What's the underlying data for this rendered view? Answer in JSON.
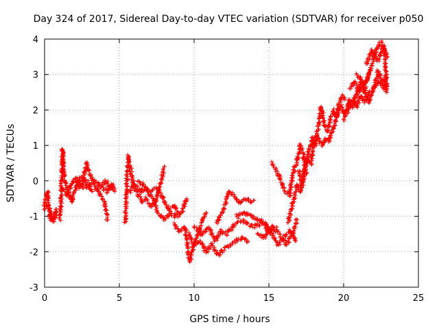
{
  "chart_data": {
    "type": "scatter",
    "title": "Day 324 of 2017, Sidereal Day-to-day VTEC variation (SDTVAR) for receiver p050",
    "xlabel": "GPS time / hours",
    "ylabel": "SDTVAR / TECUs",
    "xlim": [
      0,
      25
    ],
    "ylim": [
      -3,
      4
    ],
    "xticks": [
      0,
      5,
      10,
      15,
      20,
      25
    ],
    "yticks": [
      -3,
      -2,
      -1,
      0,
      1,
      2,
      3,
      4
    ],
    "xtick_labels": [
      "0",
      "5",
      "10",
      "15",
      "20",
      "25"
    ],
    "ytick_labels": [
      "-3",
      "-2",
      "-1",
      "0",
      "1",
      "2",
      "3",
      "4"
    ],
    "grid": true,
    "marker": "+",
    "series": [
      {
        "name": "SDTVAR",
        "color": "#ff0000",
        "tracks": [
          [
            [
              0.0,
              -0.7
            ],
            [
              0.1,
              -0.4
            ],
            [
              0.2,
              -0.3
            ],
            [
              0.3,
              -0.8
            ],
            [
              0.4,
              -1.1
            ],
            [
              0.6,
              -1.0
            ],
            [
              0.8,
              -0.8
            ]
          ],
          [
            [
              0.0,
              -0.8
            ],
            [
              0.2,
              -0.7
            ],
            [
              0.4,
              -0.9
            ],
            [
              0.6,
              -1.15
            ],
            [
              0.8,
              -0.9
            ]
          ],
          [
            [
              1.0,
              -1.1
            ],
            [
              1.1,
              -0.6
            ],
            [
              1.2,
              0.9
            ],
            [
              1.3,
              0.1
            ],
            [
              1.5,
              -0.2
            ],
            [
              1.8,
              -0.6
            ],
            [
              2.0,
              -0.3
            ],
            [
              2.4,
              0.1
            ],
            [
              2.8,
              0.0
            ],
            [
              3.2,
              -0.3
            ]
          ],
          [
            [
              1.2,
              -0.2
            ],
            [
              1.5,
              -0.4
            ],
            [
              1.8,
              -0.1
            ],
            [
              2.1,
              0.1
            ],
            [
              2.5,
              -0.1
            ],
            [
              2.8,
              0.5
            ],
            [
              3.0,
              0.2
            ],
            [
              3.3,
              0.0
            ],
            [
              3.6,
              -0.1
            ],
            [
              3.9,
              -0.2
            ],
            [
              4.2,
              -0.3
            ],
            [
              4.5,
              -0.1
            ],
            [
              4.7,
              -0.3
            ]
          ],
          [
            [
              2.0,
              0.0
            ],
            [
              2.4,
              -0.2
            ],
            [
              2.8,
              -0.15
            ],
            [
              3.2,
              -0.05
            ],
            [
              3.6,
              -0.3
            ],
            [
              4.0,
              -0.6
            ],
            [
              4.2,
              -1.1
            ]
          ],
          [
            [
              3.5,
              -0.2
            ],
            [
              3.8,
              -0.1
            ],
            [
              4.1,
              0.0
            ],
            [
              4.4,
              -0.2
            ],
            [
              4.6,
              -0.1
            ]
          ],
          [
            [
              5.4,
              -1.2
            ],
            [
              5.5,
              0.1
            ],
            [
              5.6,
              0.7
            ],
            [
              5.8,
              0.2
            ],
            [
              6.0,
              -0.2
            ],
            [
              6.3,
              -0.4
            ],
            [
              6.5,
              -0.6
            ],
            [
              6.8,
              -0.5
            ],
            [
              7.1,
              -0.7
            ],
            [
              7.4,
              -0.6
            ],
            [
              7.6,
              -0.3
            ],
            [
              7.8,
              0.0
            ],
            [
              8.0,
              0.4
            ]
          ],
          [
            [
              5.7,
              -0.3
            ],
            [
              6.0,
              -0.1
            ],
            [
              6.4,
              -0.3
            ],
            [
              6.8,
              -0.2
            ],
            [
              7.2,
              -0.5
            ],
            [
              7.6,
              -0.9
            ],
            [
              8.0,
              -1.1
            ],
            [
              8.4,
              -0.9
            ],
            [
              8.8,
              -1.0
            ],
            [
              9.2,
              -0.9
            ],
            [
              9.5,
              -0.5
            ]
          ],
          [
            [
              6.2,
              0.0
            ],
            [
              6.6,
              -0.1
            ],
            [
              7.0,
              -0.3
            ],
            [
              7.5,
              -0.2
            ],
            [
              7.9,
              -0.5
            ],
            [
              8.3,
              -0.8
            ],
            [
              8.7,
              -0.7
            ],
            [
              9.0,
              -0.9
            ]
          ],
          [
            [
              8.6,
              -1.2
            ],
            [
              9.0,
              -1.4
            ],
            [
              9.4,
              -1.3
            ],
            [
              9.7,
              -2.3
            ],
            [
              9.9,
              -1.9
            ],
            [
              10.2,
              -1.6
            ],
            [
              10.5,
              -1.2
            ],
            [
              10.8,
              -0.9
            ]
          ],
          [
            [
              9.6,
              -1.5
            ],
            [
              10.0,
              -1.8
            ],
            [
              10.4,
              -1.7
            ],
            [
              10.8,
              -2.0
            ],
            [
              11.2,
              -1.8
            ],
            [
              11.6,
              -2.1
            ],
            [
              12.0,
              -1.9
            ],
            [
              12.4,
              -1.8
            ],
            [
              12.8,
              -1.7
            ],
            [
              13.2,
              -1.6
            ],
            [
              13.6,
              -1.7
            ]
          ],
          [
            [
              10.0,
              -1.3
            ],
            [
              10.5,
              -1.5
            ],
            [
              11.0,
              -1.3
            ],
            [
              11.4,
              -1.7
            ],
            [
              11.8,
              -1.4
            ],
            [
              12.2,
              -1.5
            ],
            [
              12.6,
              -1.3
            ],
            [
              13.0,
              -1.1
            ],
            [
              13.5,
              -1.2
            ],
            [
              14.0,
              -1.3
            ],
            [
              14.5,
              -1.2
            ],
            [
              15.0,
              -1.4
            ],
            [
              15.5,
              -1.3
            ]
          ],
          [
            [
              11.5,
              -1.2
            ],
            [
              12.0,
              -0.8
            ],
            [
              12.3,
              -0.3
            ],
            [
              12.6,
              -0.4
            ],
            [
              13.0,
              -0.6
            ],
            [
              13.4,
              -0.5
            ],
            [
              13.8,
              -0.6
            ],
            [
              14.0,
              -0.55
            ]
          ],
          [
            [
              12.8,
              -1.0
            ],
            [
              13.3,
              -0.9
            ],
            [
              13.8,
              -1.0
            ],
            [
              14.3,
              -1.1
            ],
            [
              14.8,
              -1.2
            ],
            [
              15.2,
              -1.5
            ],
            [
              15.6,
              -1.8
            ],
            [
              16.0,
              -1.6
            ],
            [
              16.4,
              -1.4
            ],
            [
              16.8,
              -1.7
            ]
          ],
          [
            [
              14.2,
              -1.5
            ],
            [
              14.7,
              -1.6
            ],
            [
              15.2,
              -1.3
            ],
            [
              15.7,
              -1.5
            ],
            [
              16.2,
              -1.8
            ],
            [
              16.6,
              -1.5
            ],
            [
              16.9,
              -1.1
            ]
          ],
          [
            [
              15.2,
              0.5
            ],
            [
              15.5,
              0.3
            ],
            [
              15.8,
              0.0
            ],
            [
              16.1,
              -0.3
            ],
            [
              16.4,
              -0.4
            ],
            [
              16.6,
              0.2
            ],
            [
              16.9,
              0.6
            ],
            [
              17.1,
              1.0
            ],
            [
              17.3,
              0.8
            ],
            [
              17.5,
              0.2
            ]
          ],
          [
            [
              16.3,
              -1.2
            ],
            [
              16.5,
              -0.8
            ],
            [
              16.7,
              -0.5
            ],
            [
              16.9,
              -0.1
            ],
            [
              17.1,
              -0.3
            ],
            [
              17.3,
              0.0
            ],
            [
              17.5,
              0.5
            ],
            [
              17.7,
              0.9
            ],
            [
              17.9,
              1.2
            ],
            [
              18.1,
              1.0
            ],
            [
              18.3,
              1.5
            ],
            [
              18.5,
              2.1
            ],
            [
              18.7,
              1.6
            ],
            [
              18.9,
              1.4
            ],
            [
              19.1,
              1.7
            ],
            [
              19.3,
              2.0
            ],
            [
              19.5,
              1.8
            ],
            [
              19.7,
              2.2
            ],
            [
              19.9,
              2.4
            ],
            [
              20.1,
              2.3
            ]
          ],
          [
            [
              17.0,
              0.3
            ],
            [
              17.2,
              -0.1
            ],
            [
              17.4,
              0.4
            ],
            [
              17.6,
              0.6
            ],
            [
              17.8,
              0.5
            ],
            [
              18.0,
              1.1
            ],
            [
              18.2,
              1.3
            ],
            [
              18.4,
              1.1
            ],
            [
              18.6,
              1.0
            ],
            [
              18.8,
              1.2
            ],
            [
              19.0,
              1.1
            ],
            [
              19.2,
              1.4
            ],
            [
              19.4,
              1.6
            ],
            [
              19.6,
              1.9
            ],
            [
              19.8,
              2.1
            ],
            [
              20.0,
              1.9
            ],
            [
              20.2,
              2.0
            ],
            [
              20.4,
              2.3
            ],
            [
              20.6,
              2.1
            ],
            [
              20.8,
              2.4
            ],
            [
              21.0,
              2.6
            ],
            [
              21.2,
              2.8
            ],
            [
              21.4,
              2.6
            ],
            [
              21.6,
              2.9
            ],
            [
              21.8,
              3.1
            ]
          ],
          [
            [
              20.0,
              1.7
            ],
            [
              20.3,
              2.0
            ],
            [
              20.6,
              2.3
            ],
            [
              20.9,
              2.1
            ],
            [
              21.1,
              2.4
            ],
            [
              21.4,
              2.2
            ],
            [
              21.7,
              2.5
            ],
            [
              22.0,
              2.6
            ],
            [
              22.3,
              2.8
            ],
            [
              22.6,
              2.7
            ],
            [
              22.9,
              2.5
            ]
          ],
          [
            [
              20.4,
              2.6
            ],
            [
              20.7,
              2.8
            ],
            [
              21.0,
              2.5
            ],
            [
              21.3,
              2.7
            ],
            [
              21.6,
              2.9
            ],
            [
              21.9,
              3.3
            ],
            [
              22.1,
              3.6
            ],
            [
              22.3,
              3.8
            ],
            [
              22.5,
              3.9
            ],
            [
              22.7,
              3.7
            ],
            [
              22.9,
              3.5
            ]
          ],
          [
            [
              21.5,
              3.3
            ],
            [
              21.7,
              3.5
            ],
            [
              21.9,
              3.7
            ],
            [
              22.1,
              3.5
            ],
            [
              22.3,
              3.4
            ],
            [
              22.5,
              3.6
            ],
            [
              22.7,
              3.8
            ],
            [
              22.8,
              3.2
            ],
            [
              22.9,
              2.6
            ]
          ],
          [
            [
              20.9,
              3.0
            ],
            [
              21.1,
              2.9
            ],
            [
              21.3,
              2.6
            ],
            [
              21.5,
              2.4
            ],
            [
              21.7,
              2.2
            ],
            [
              21.9,
              2.5
            ],
            [
              22.1,
              2.7
            ],
            [
              22.3,
              3.1
            ],
            [
              22.5,
              2.9
            ],
            [
              22.7,
              2.7
            ],
            [
              22.9,
              3.0
            ]
          ]
        ]
      }
    ]
  }
}
